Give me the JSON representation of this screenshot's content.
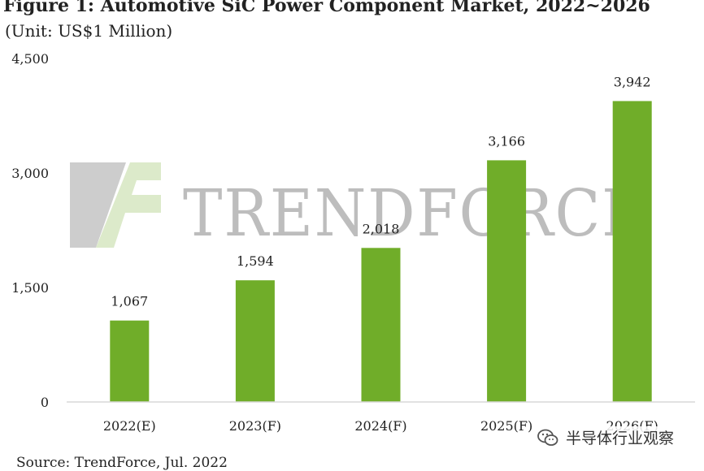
{
  "header": {
    "title": "Figure 1: Automotive SiC Power Component Market, 2022~2026",
    "subtitle": "(Unit: US$1 Million)"
  },
  "chart_data": {
    "type": "bar",
    "categories": [
      "2022(E)",
      "2023(F)",
      "2024(F)",
      "2025(F)",
      "2026(F)"
    ],
    "values": [
      1067,
      1594,
      2018,
      3166,
      3942
    ],
    "value_labels": [
      "1,067",
      "1,594",
      "2,018",
      "3,166",
      "3,942"
    ],
    "title": "Figure 1: Automotive SiC Power Component Market, 2022~2026",
    "subtitle": "(Unit: US$1 Million)",
    "xlabel": "",
    "ylabel": "",
    "ylim": [
      0,
      4500
    ],
    "yticks": [
      0,
      1500,
      3000,
      4500
    ],
    "ytick_labels": [
      "0",
      "1,500",
      "3,000",
      "4,500"
    ],
    "grid": false,
    "legend": "none",
    "bar_color": "#70ad29"
  },
  "watermark": {
    "text": "TRENDFORCE",
    "logo_icon": "trendforce-logo-icon",
    "color_gray": "#c4c4c4",
    "color_green": "#d8e8c4"
  },
  "footer": {
    "source": "Source: TrendForce, Jul. 2022"
  },
  "overlay": {
    "wechat_icon": "wechat-icon",
    "wechat_text": "半导体行业观察"
  }
}
